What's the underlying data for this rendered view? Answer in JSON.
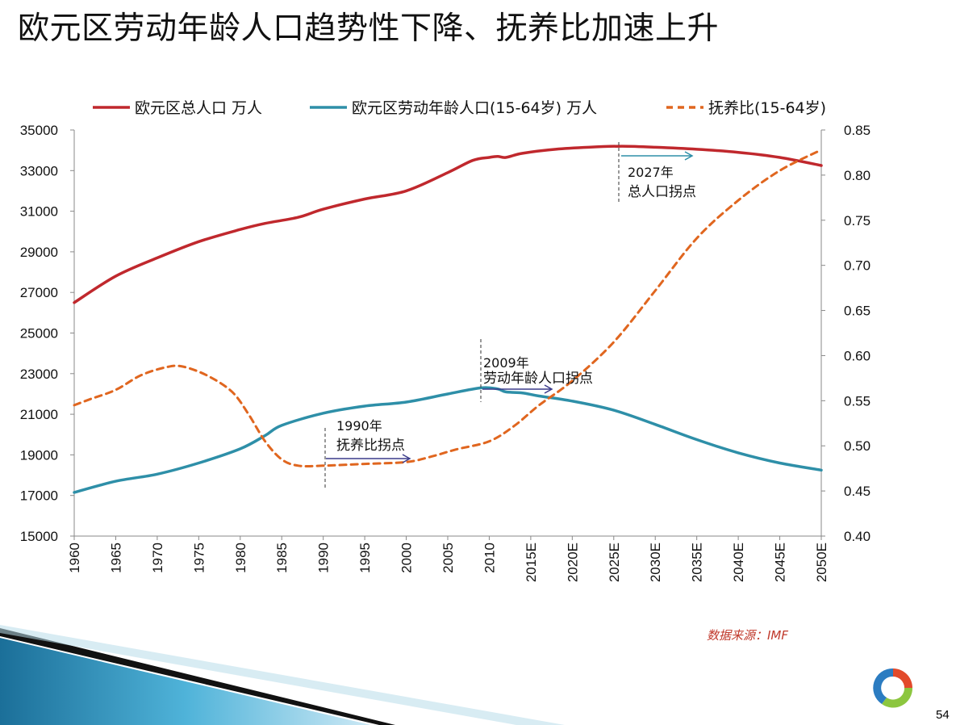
{
  "title": "欧元区劳动年龄人口趋势性下降、抚养比加速上升",
  "source_note": "数据来源：IMF",
  "page_number": "54",
  "colors": {
    "total_population": "#c0282d",
    "working_age": "#2e8fa8",
    "dependency": "#e0661f"
  },
  "chart_data": {
    "type": "line",
    "x_ticks": [
      "1960",
      "1965",
      "1970",
      "1975",
      "1980",
      "1985",
      "1990",
      "1995",
      "2000",
      "2005",
      "2010",
      "2015E",
      "2020E",
      "2025E",
      "2030E",
      "2035E",
      "2040E",
      "2045E",
      "2050E"
    ],
    "x_range": [
      1960,
      2050
    ],
    "y_left": {
      "ticks": [
        "35000",
        "33000",
        "31000",
        "29000",
        "27000",
        "25000",
        "23000",
        "21000",
        "19000",
        "17000",
        "15000"
      ],
      "min": 15000,
      "max": 35000
    },
    "y_right": {
      "ticks": [
        "0.85",
        "0.80",
        "0.75",
        "0.70",
        "0.65",
        "0.60",
        "0.55",
        "0.50",
        "0.45",
        "0.40"
      ],
      "min": 0.4,
      "max": 0.85
    },
    "legend_position": "top",
    "grid": false,
    "series": [
      {
        "name": "欧元区总人口 万人",
        "axis": "left",
        "style": "solid",
        "x": [
          1960,
          1965,
          1970,
          1975,
          1980,
          1983,
          1987,
          1990,
          1995,
          2000,
          2005,
          2008,
          2010,
          2011,
          2012,
          2014,
          2018,
          2022,
          2026,
          2030,
          2035,
          2040,
          2045,
          2050
        ],
        "y": [
          26500,
          27800,
          28700,
          29500,
          30100,
          30400,
          30700,
          31100,
          31600,
          32000,
          32900,
          33500,
          33650,
          33700,
          33650,
          33850,
          34050,
          34150,
          34200,
          34150,
          34050,
          33900,
          33650,
          33250
        ]
      },
      {
        "name": "欧元区劳动年龄人口(15-64岁) 万人",
        "axis": "left",
        "style": "solid",
        "x": [
          1960,
          1965,
          1970,
          1975,
          1980,
          1983,
          1985,
          1990,
          1995,
          2000,
          2005,
          2009,
          2011,
          2012,
          2014,
          2016,
          2020,
          2025,
          2030,
          2035,
          2040,
          2045,
          2050
        ],
        "y": [
          17150,
          17700,
          18050,
          18600,
          19300,
          19950,
          20450,
          21050,
          21400,
          21600,
          22000,
          22300,
          22250,
          22100,
          22050,
          21900,
          21650,
          21200,
          20500,
          19750,
          19100,
          18600,
          18250
        ]
      },
      {
        "name": "抚养比(15-64岁)",
        "axis": "right",
        "style": "dashed",
        "x": [
          1960,
          1962,
          1965,
          1968,
          1971,
          1973,
          1976,
          1979,
          1981,
          1983,
          1985,
          1987,
          1990,
          1995,
          2000,
          2003,
          2006,
          2010,
          2013,
          2016,
          2020,
          2025,
          2030,
          2035,
          2040,
          2045,
          2050
        ],
        "y": [
          0.545,
          0.552,
          0.562,
          0.578,
          0.587,
          0.588,
          0.578,
          0.56,
          0.535,
          0.505,
          0.485,
          0.478,
          0.478,
          0.48,
          0.482,
          0.488,
          0.496,
          0.505,
          0.522,
          0.545,
          0.572,
          0.615,
          0.672,
          0.73,
          0.772,
          0.805,
          0.828
        ]
      }
    ],
    "annotations": [
      {
        "year_label": "2027年",
        "text": "总人口拐点",
        "at": 2027
      },
      {
        "year_label": "2009年",
        "text": "劳动年龄人口拐点",
        "at": 2009
      },
      {
        "year_label": "1990年",
        "text": "抚养比拐点",
        "at": 1990
      }
    ]
  }
}
